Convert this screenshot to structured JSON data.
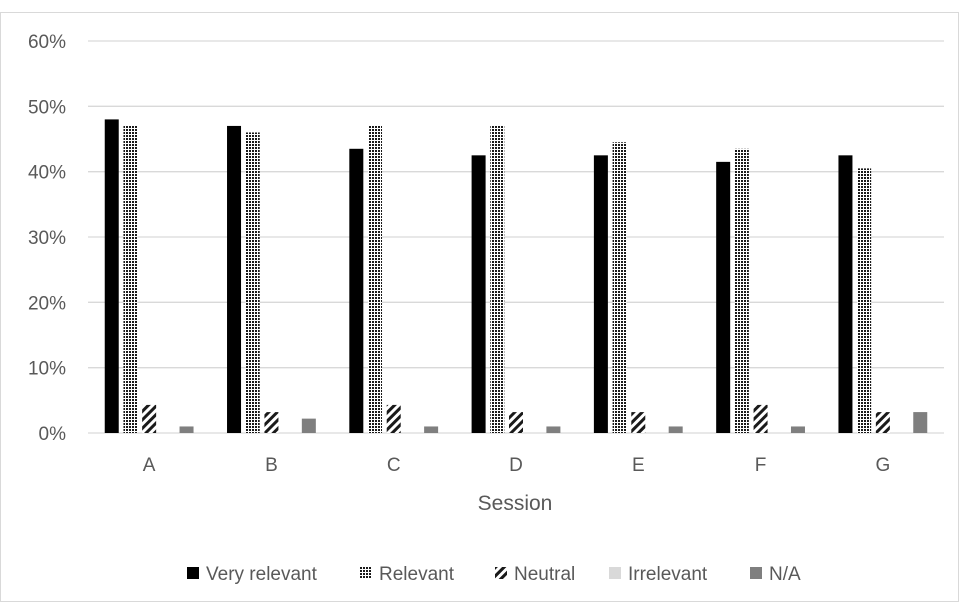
{
  "chart_data": {
    "type": "bar",
    "categories": [
      "A",
      "B",
      "C",
      "D",
      "E",
      "F",
      "G"
    ],
    "series": [
      {
        "name": "Very relevant",
        "values": [
          48,
          47,
          43.5,
          42.5,
          42.5,
          41.5,
          42.5
        ],
        "fill": "solid-black"
      },
      {
        "name": "Relevant",
        "values": [
          47,
          46,
          47,
          47,
          44.5,
          43.5,
          40.5
        ],
        "fill": "dense-checker"
      },
      {
        "name": "Neutral",
        "values": [
          4.3,
          3.2,
          4.3,
          3.2,
          3.2,
          4.3,
          3.2
        ],
        "fill": "diagonal-hatch"
      },
      {
        "name": "Irrelevant",
        "values": [
          0,
          0,
          0,
          0,
          0,
          0,
          0
        ],
        "fill": "light-grey"
      },
      {
        "name": "N/A",
        "values": [
          1,
          2.2,
          1,
          1,
          1,
          1,
          3.2
        ],
        "fill": "dark-grey"
      }
    ],
    "xlabel": "Session",
    "ylabel": "",
    "ylim": [
      0,
      60
    ],
    "yticks": [
      "0%",
      "10%",
      "20%",
      "30%",
      "40%",
      "50%",
      "60%"
    ],
    "grid": true,
    "legend_position": "bottom"
  },
  "colors": {
    "very_relevant": "#000000",
    "pattern": "#1a1a1a",
    "irrelevant": "#d9d9d9",
    "na": "#7f7f7f",
    "grid": "#d9d9d9",
    "text": "#595959"
  }
}
